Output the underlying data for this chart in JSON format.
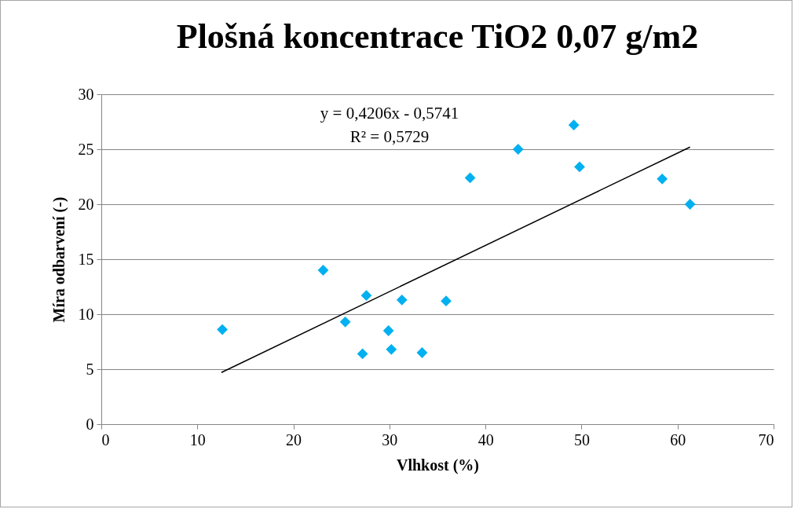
{
  "chart_data": {
    "type": "scatter",
    "title": "Plošná koncentrace TiO2 0,07 g/m2",
    "xlabel": "Vlhkost (%)",
    "ylabel": "Míra odbarvení (-)",
    "xlim": [
      0,
      70
    ],
    "xticks": [
      0,
      10,
      20,
      30,
      40,
      50,
      60,
      70
    ],
    "ylim": [
      0,
      30
    ],
    "yticks": [
      0,
      5,
      10,
      15,
      20,
      25,
      30
    ],
    "grid": "y",
    "annotations": [
      "y = 0,4206x - 0,5741",
      "R² = 0,5729"
    ],
    "series": [
      {
        "color": "#00b0f0",
        "marker": "diamond",
        "x": [
          12.6,
          23.1,
          25.4,
          27.2,
          27.6,
          29.9,
          30.2,
          31.3,
          33.4,
          35.9,
          38.4,
          43.4,
          49.2,
          49.8,
          58.4,
          61.3
        ],
        "values": [
          8.6,
          14.0,
          9.3,
          6.4,
          11.7,
          8.5,
          6.8,
          11.3,
          6.5,
          11.2,
          22.4,
          25.0,
          27.2,
          23.4,
          22.3,
          20.0
        ]
      },
      {
        "type": "line",
        "color": "#000000",
        "line_style": "solid",
        "x": [
          12.5,
          61.3
        ],
        "values": [
          4.7,
          25.2
        ]
      }
    ]
  }
}
